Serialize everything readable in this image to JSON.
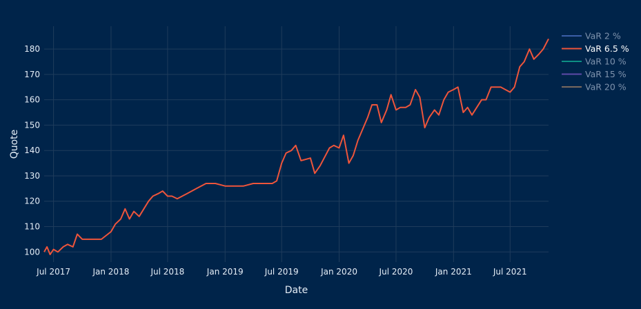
{
  "chart_data": {
    "type": "line",
    "xlabel": "Date",
    "ylabel": "Quote",
    "x_ticks": [
      "Jul 2017",
      "Jan 2018",
      "Jul 2018",
      "Jan 2019",
      "Jul 2019",
      "Jan 2020",
      "Jul 2020",
      "Jan 2021",
      "Jul 2021"
    ],
    "y_ticks": [
      "100",
      "110",
      "120",
      "130",
      "140",
      "150",
      "160",
      "170",
      "180"
    ],
    "xlim": [
      "2017-06-01",
      "2021-11-01"
    ],
    "ylim": [
      96,
      189
    ],
    "grid": true,
    "legend_position": "top-right",
    "legend": [
      {
        "name": "VaR 2 %",
        "color": "#3b5fa8",
        "active": false
      },
      {
        "name": "VaR 6.5 %",
        "color": "#ef553b",
        "active": true
      },
      {
        "name": "VaR 10 %",
        "color": "#0d8f84",
        "active": false
      },
      {
        "name": "VaR 15 %",
        "color": "#5e4aa8",
        "active": false
      },
      {
        "name": "VaR 20 %",
        "color": "#7a6a5e",
        "active": false
      }
    ],
    "series": [
      {
        "name": "VaR 6.5 %",
        "color": "#ef553b",
        "points": [
          [
            "2017-06-01",
            100
          ],
          [
            "2017-06-10",
            102
          ],
          [
            "2017-06-20",
            99
          ],
          [
            "2017-07-01",
            101
          ],
          [
            "2017-07-15",
            100
          ],
          [
            "2017-08-01",
            102
          ],
          [
            "2017-08-15",
            103
          ],
          [
            "2017-09-01",
            102
          ],
          [
            "2017-09-15",
            107
          ],
          [
            "2017-10-01",
            105
          ],
          [
            "2017-11-01",
            105
          ],
          [
            "2017-12-01",
            105
          ],
          [
            "2018-01-01",
            108
          ],
          [
            "2018-01-15",
            111
          ],
          [
            "2018-02-01",
            113
          ],
          [
            "2018-02-15",
            117
          ],
          [
            "2018-03-01",
            113
          ],
          [
            "2018-03-15",
            116
          ],
          [
            "2018-04-01",
            114
          ],
          [
            "2018-05-01",
            120
          ],
          [
            "2018-05-15",
            122
          ],
          [
            "2018-06-01",
            123
          ],
          [
            "2018-06-15",
            124
          ],
          [
            "2018-07-01",
            122
          ],
          [
            "2018-07-15",
            122
          ],
          [
            "2018-08-01",
            121
          ],
          [
            "2018-09-01",
            123
          ],
          [
            "2018-10-01",
            125
          ],
          [
            "2018-11-01",
            127
          ],
          [
            "2018-12-01",
            127
          ],
          [
            "2019-01-01",
            126
          ],
          [
            "2019-02-01",
            126
          ],
          [
            "2019-03-01",
            126
          ],
          [
            "2019-04-01",
            127
          ],
          [
            "2019-05-01",
            127
          ],
          [
            "2019-06-01",
            127
          ],
          [
            "2019-06-15",
            128
          ],
          [
            "2019-07-01",
            135
          ],
          [
            "2019-07-15",
            139
          ],
          [
            "2019-08-01",
            140
          ],
          [
            "2019-08-15",
            142
          ],
          [
            "2019-09-01",
            136
          ],
          [
            "2019-10-01",
            137
          ],
          [
            "2019-10-15",
            131
          ],
          [
            "2019-11-01",
            134
          ],
          [
            "2019-12-01",
            141
          ],
          [
            "2019-12-15",
            142
          ],
          [
            "2020-01-01",
            141
          ],
          [
            "2020-01-15",
            146
          ],
          [
            "2020-02-01",
            135
          ],
          [
            "2020-02-15",
            138
          ],
          [
            "2020-03-01",
            144
          ],
          [
            "2020-04-01",
            153
          ],
          [
            "2020-04-15",
            158
          ],
          [
            "2020-05-01",
            158
          ],
          [
            "2020-05-15",
            151
          ],
          [
            "2020-06-01",
            156
          ],
          [
            "2020-06-15",
            162
          ],
          [
            "2020-07-01",
            156
          ],
          [
            "2020-07-15",
            157
          ],
          [
            "2020-08-01",
            157
          ],
          [
            "2020-08-15",
            158
          ],
          [
            "2020-09-01",
            164
          ],
          [
            "2020-09-15",
            161
          ],
          [
            "2020-10-01",
            149
          ],
          [
            "2020-10-15",
            153
          ],
          [
            "2020-11-01",
            156
          ],
          [
            "2020-11-15",
            154
          ],
          [
            "2020-12-01",
            160
          ],
          [
            "2020-12-15",
            163
          ],
          [
            "2021-01-01",
            164
          ],
          [
            "2021-01-15",
            165
          ],
          [
            "2021-02-01",
            155
          ],
          [
            "2021-02-15",
            157
          ],
          [
            "2021-03-01",
            154
          ],
          [
            "2021-04-01",
            160
          ],
          [
            "2021-04-15",
            160
          ],
          [
            "2021-05-01",
            165
          ],
          [
            "2021-06-01",
            165
          ],
          [
            "2021-07-01",
            163
          ],
          [
            "2021-07-15",
            165
          ],
          [
            "2021-08-01",
            173
          ],
          [
            "2021-08-15",
            175
          ],
          [
            "2021-09-01",
            180
          ],
          [
            "2021-09-15",
            176
          ],
          [
            "2021-10-01",
            178
          ],
          [
            "2021-10-15",
            180
          ],
          [
            "2021-11-01",
            184
          ]
        ]
      }
    ]
  }
}
